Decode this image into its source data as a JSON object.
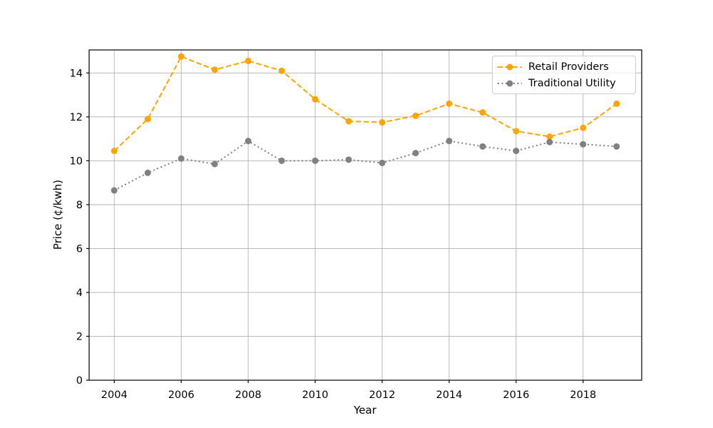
{
  "chart_data": {
    "type": "line",
    "x": [
      2004,
      2005,
      2006,
      2007,
      2008,
      2009,
      2010,
      2011,
      2012,
      2013,
      2014,
      2015,
      2016,
      2017,
      2018,
      2019
    ],
    "series": [
      {
        "name": "Retail Providers",
        "color": "#FFA500",
        "line_style": "dashed",
        "marker": "circle",
        "values": [
          10.45,
          11.9,
          14.75,
          14.15,
          14.55,
          14.1,
          12.8,
          11.8,
          11.75,
          12.05,
          12.6,
          12.2,
          11.35,
          11.1,
          11.5,
          12.6
        ]
      },
      {
        "name": "Traditional Utility",
        "color": "#808080",
        "line_style": "dotted",
        "marker": "circle",
        "values": [
          8.65,
          9.45,
          10.1,
          9.85,
          10.9,
          10.0,
          10.0,
          10.05,
          9.9,
          10.35,
          10.9,
          10.65,
          10.45,
          10.85,
          10.75,
          10.65
        ]
      }
    ],
    "xlabel": "Year",
    "ylabel": "Price (¢/kwh)",
    "xticks": [
      2004,
      2006,
      2008,
      2010,
      2012,
      2014,
      2016,
      2018
    ],
    "yticks": [
      0,
      2,
      4,
      6,
      8,
      10,
      12,
      14
    ],
    "xlim": [
      2003.25,
      2019.75
    ],
    "ylim": [
      0,
      15.05
    ],
    "grid": true,
    "legend_position": "upper right",
    "grid_color": "#B0B0B0",
    "spine_color": "#000000",
    "tick_label_color": "#000000",
    "background": "#FFFFFF"
  }
}
